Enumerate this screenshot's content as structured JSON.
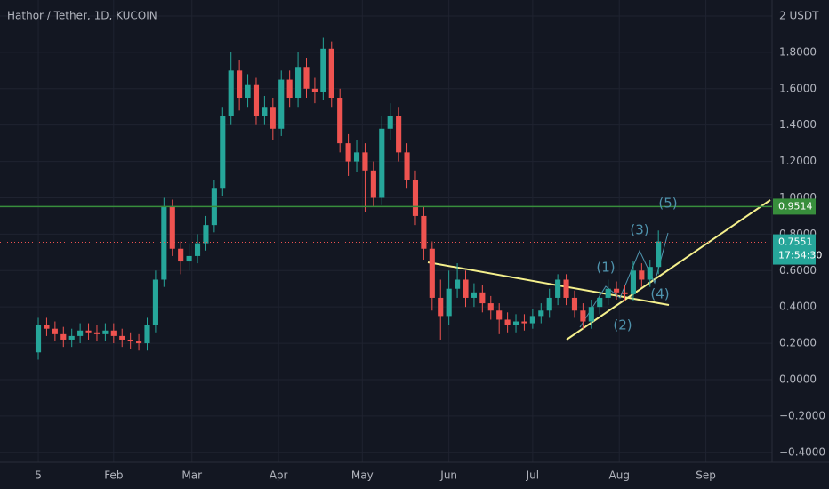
{
  "chart_data": {
    "type": "candlestick",
    "title": "Hathor / Tether, 1D, KUCOIN",
    "x": [
      0,
      3,
      6,
      9,
      12,
      15,
      18,
      21,
      24,
      27,
      30,
      33,
      36,
      39,
      42,
      45,
      48,
      51,
      54,
      57,
      60,
      63,
      66,
      69,
      72,
      75,
      78,
      81,
      84,
      87,
      90,
      93,
      96,
      99,
      102,
      105,
      108,
      111,
      114,
      117,
      120,
      123,
      126,
      129,
      132,
      135,
      138,
      141,
      144,
      147,
      150,
      153,
      156,
      159,
      162,
      165,
      168,
      171,
      174,
      177,
      180,
      183,
      186,
      189,
      192,
      195,
      198,
      201,
      204,
      207,
      210,
      213,
      216,
      219,
      222
    ],
    "open": [
      0.15,
      0.3,
      0.28,
      0.25,
      0.22,
      0.24,
      0.27,
      0.26,
      0.25,
      0.27,
      0.24,
      0.22,
      0.21,
      0.2,
      0.3,
      0.55,
      0.95,
      0.72,
      0.65,
      0.68,
      0.75,
      0.85,
      1.05,
      1.45,
      1.7,
      1.55,
      1.62,
      1.45,
      1.5,
      1.38,
      1.65,
      1.55,
      1.72,
      1.6,
      1.58,
      1.82,
      1.55,
      1.3,
      1.2,
      1.25,
      1.15,
      1.0,
      1.38,
      1.45,
      1.25,
      1.1,
      0.9,
      0.72,
      0.45,
      0.35,
      0.5,
      0.55,
      0.45,
      0.48,
      0.42,
      0.38,
      0.33,
      0.3,
      0.32,
      0.31,
      0.35,
      0.38,
      0.45,
      0.55,
      0.45,
      0.38,
      0.32,
      0.4,
      0.45,
      0.5,
      0.48,
      0.47,
      0.6,
      0.55,
      0.62
    ],
    "high": [
      0.34,
      0.34,
      0.32,
      0.29,
      0.28,
      0.31,
      0.31,
      0.3,
      0.31,
      0.31,
      0.28,
      0.26,
      0.25,
      0.34,
      0.6,
      1.0,
      0.99,
      0.76,
      0.75,
      0.8,
      0.9,
      1.1,
      1.5,
      1.8,
      1.76,
      1.68,
      1.66,
      1.56,
      1.55,
      1.7,
      1.7,
      1.8,
      1.77,
      1.66,
      1.88,
      1.86,
      1.6,
      1.35,
      1.32,
      1.3,
      1.2,
      1.45,
      1.52,
      1.5,
      1.3,
      1.15,
      0.95,
      0.76,
      0.55,
      0.6,
      0.64,
      0.6,
      0.53,
      0.52,
      0.46,
      0.42,
      0.37,
      0.36,
      0.36,
      0.39,
      0.42,
      0.5,
      0.58,
      0.58,
      0.49,
      0.42,
      0.44,
      0.49,
      0.55,
      0.54,
      0.52,
      0.65,
      0.64,
      0.66,
      0.82
    ],
    "low": [
      0.11,
      0.24,
      0.21,
      0.18,
      0.18,
      0.2,
      0.22,
      0.21,
      0.21,
      0.2,
      0.18,
      0.17,
      0.16,
      0.16,
      0.26,
      0.51,
      0.68,
      0.58,
      0.6,
      0.64,
      0.71,
      0.81,
      1.01,
      1.4,
      1.48,
      1.5,
      1.4,
      1.4,
      1.32,
      1.34,
      1.5,
      1.5,
      1.55,
      1.52,
      1.54,
      1.5,
      1.25,
      1.12,
      1.14,
      0.92,
      0.95,
      0.96,
      1.32,
      1.2,
      1.05,
      0.85,
      0.66,
      0.38,
      0.22,
      0.3,
      0.45,
      0.4,
      0.4,
      0.37,
      0.33,
      0.25,
      0.26,
      0.26,
      0.27,
      0.28,
      0.31,
      0.34,
      0.41,
      0.41,
      0.34,
      0.28,
      0.28,
      0.36,
      0.41,
      0.44,
      0.43,
      0.43,
      0.51,
      0.51,
      0.58
    ],
    "close": [
      0.3,
      0.28,
      0.25,
      0.22,
      0.24,
      0.27,
      0.26,
      0.25,
      0.27,
      0.24,
      0.22,
      0.21,
      0.2,
      0.3,
      0.55,
      0.95,
      0.72,
      0.65,
      0.68,
      0.75,
      0.85,
      1.05,
      1.45,
      1.7,
      1.55,
      1.62,
      1.45,
      1.5,
      1.38,
      1.65,
      1.55,
      1.72,
      1.6,
      1.58,
      1.82,
      1.55,
      1.3,
      1.2,
      1.25,
      1.15,
      1.0,
      1.38,
      1.45,
      1.25,
      1.1,
      0.9,
      0.72,
      0.45,
      0.35,
      0.5,
      0.55,
      0.45,
      0.48,
      0.42,
      0.38,
      0.33,
      0.3,
      0.32,
      0.31,
      0.35,
      0.38,
      0.45,
      0.55,
      0.45,
      0.38,
      0.32,
      0.4,
      0.45,
      0.5,
      0.48,
      0.47,
      0.6,
      0.55,
      0.62,
      0.76
    ],
    "up_color": "#26a69a",
    "down_color": "#ef5350",
    "xlim": [
      -13.7,
      262.7
    ],
    "xticks": [
      {
        "value": 0,
        "label": "5"
      },
      {
        "value": 27,
        "label": "Feb"
      },
      {
        "value": 55,
        "label": "Mar"
      },
      {
        "value": 86,
        "label": "Apr"
      },
      {
        "value": 116,
        "label": "May"
      },
      {
        "value": 147,
        "label": "Jun"
      },
      {
        "value": 177,
        "label": "Jul"
      },
      {
        "value": 208,
        "label": "Aug"
      },
      {
        "value": 239,
        "label": "Sep"
      }
    ],
    "ylim": [
      -0.455,
      2.088
    ],
    "yticks": [
      {
        "value": 2,
        "label": "2 USDT"
      },
      {
        "value": 1.8,
        "label": "1.8000"
      },
      {
        "value": 1.6,
        "label": "1.6000"
      },
      {
        "value": 1.4,
        "label": "1.4000"
      },
      {
        "value": 1.2,
        "label": "1.2000"
      },
      {
        "value": 1.0,
        "label": "1.0000"
      },
      {
        "value": 0.8,
        "label": "0.8000"
      },
      {
        "value": 0.6,
        "label": "0.6000"
      },
      {
        "value": 0.4,
        "label": "0.4000"
      },
      {
        "value": 0.2,
        "label": "0.2000"
      },
      {
        "value": 0,
        "label": "0.0000"
      },
      {
        "value": -0.2,
        "label": "−0.2000"
      },
      {
        "value": -0.4,
        "label": "−0.4000"
      }
    ],
    "grid": true,
    "horizontal_line": {
      "value": 0.9514,
      "color": "#388e3c"
    },
    "last_price": {
      "value": 0.7551,
      "countdown": "17:54:30",
      "color": "#ef5350"
    },
    "annotations": [
      "(1)",
      "(2)",
      "(3)",
      "(4)",
      "(5)"
    ]
  }
}
